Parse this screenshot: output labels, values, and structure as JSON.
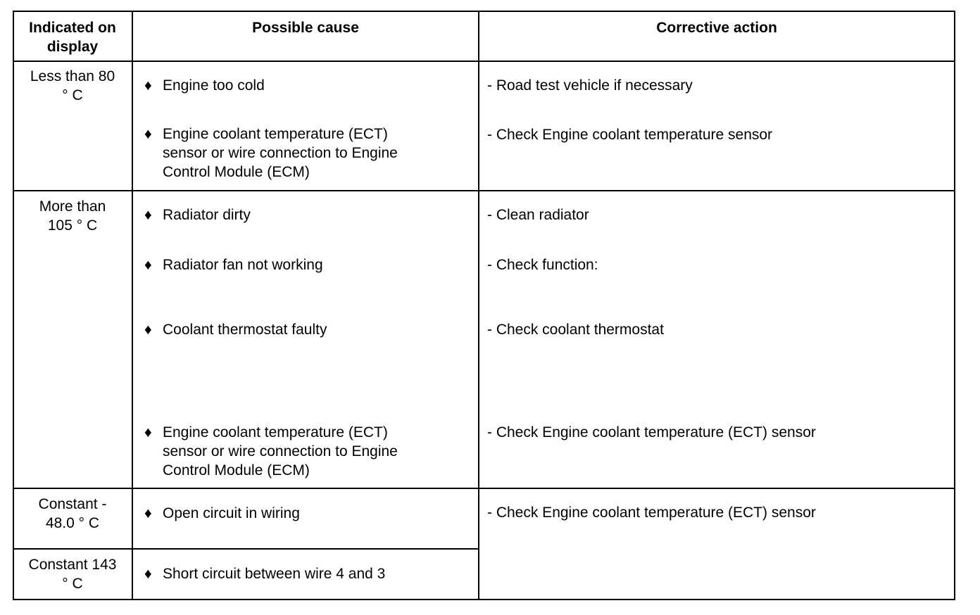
{
  "header": {
    "col1_line1": "Indicated on",
    "col1_line2": "display",
    "col2": "Possible cause",
    "col3": "Corrective action"
  },
  "bullet": "♦",
  "rows": [
    {
      "display": [
        "Less than 80",
        "° C"
      ],
      "causes": [
        [
          "Engine too cold"
        ],
        [
          "Engine coolant temperature (ECT)",
          "sensor or wire connection to Engine",
          "Control Module (ECM)"
        ]
      ],
      "actions": [
        "- Road test vehicle if necessary",
        "- Check Engine coolant temperature sensor"
      ]
    },
    {
      "display": [
        "More than",
        "105 ° C"
      ],
      "causes": [
        [
          "Radiator dirty"
        ],
        [
          "Radiator fan not working"
        ],
        [
          "Coolant thermostat faulty"
        ],
        [
          "Engine coolant temperature (ECT)",
          "sensor or wire connection to Engine",
          "Control Module (ECM)"
        ]
      ],
      "actions": [
        "- Clean radiator",
        "- Check function:",
        "- Check coolant thermostat",
        "- Check Engine coolant temperature (ECT) sensor"
      ]
    },
    {
      "display": [
        "Constant -",
        "48.0 ° C"
      ],
      "causes": [
        [
          "Open circuit in wiring"
        ]
      ],
      "actions": [
        "- Check Engine coolant temperature (ECT) sensor"
      ]
    },
    {
      "display": [
        "Constant 143",
        "° C"
      ],
      "causes": [
        [
          "Short circuit between wire 4 and 3"
        ]
      ]
    }
  ]
}
